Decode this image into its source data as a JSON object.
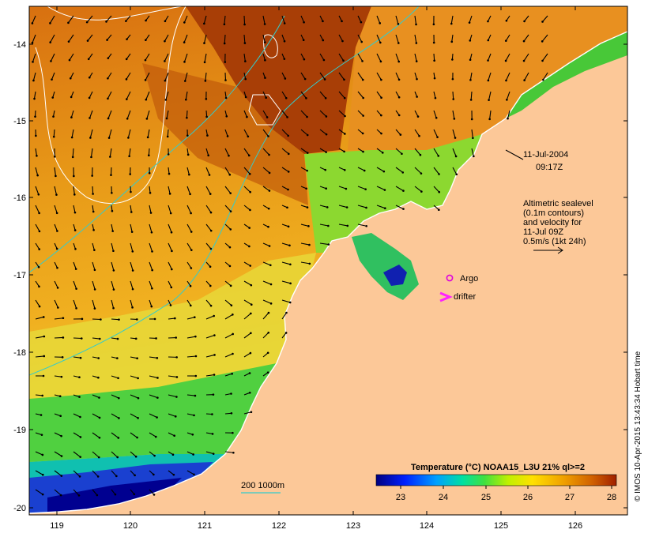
{
  "map": {
    "date": "11-Jul-2004",
    "time": "09:17Z",
    "legend_lines": [
      "Altimetric sealevel",
      "(0.1m contours)",
      "and velocity for",
      "11-Jul 09Z",
      "0.5m/s (1kt 24h)"
    ],
    "argo_label": "Argo",
    "drifter_label": "drifter",
    "bathymetry_label": "200  1000m",
    "credit": "© IMOS 10-Apr-2015 13:43:34 Hobart time",
    "lon_ticks": [
      "119",
      "120",
      "121",
      "122",
      "123",
      "124",
      "125",
      "126"
    ],
    "lat_ticks": [
      "-14",
      "-15",
      "-16",
      "-17",
      "-18",
      "-19",
      "-20"
    ],
    "colorbar": {
      "title": "Temperature (°C) NOAA15_L3U 21% ql>=2",
      "ticks": [
        "23",
        "24",
        "25",
        "26",
        "27",
        "28"
      ]
    }
  },
  "colors": {
    "land": "#fcc898",
    "argo": "#dd00dd",
    "drifter": "#ff22ff",
    "bathymetry": "#33cccc",
    "contour": "#ffffff"
  }
}
